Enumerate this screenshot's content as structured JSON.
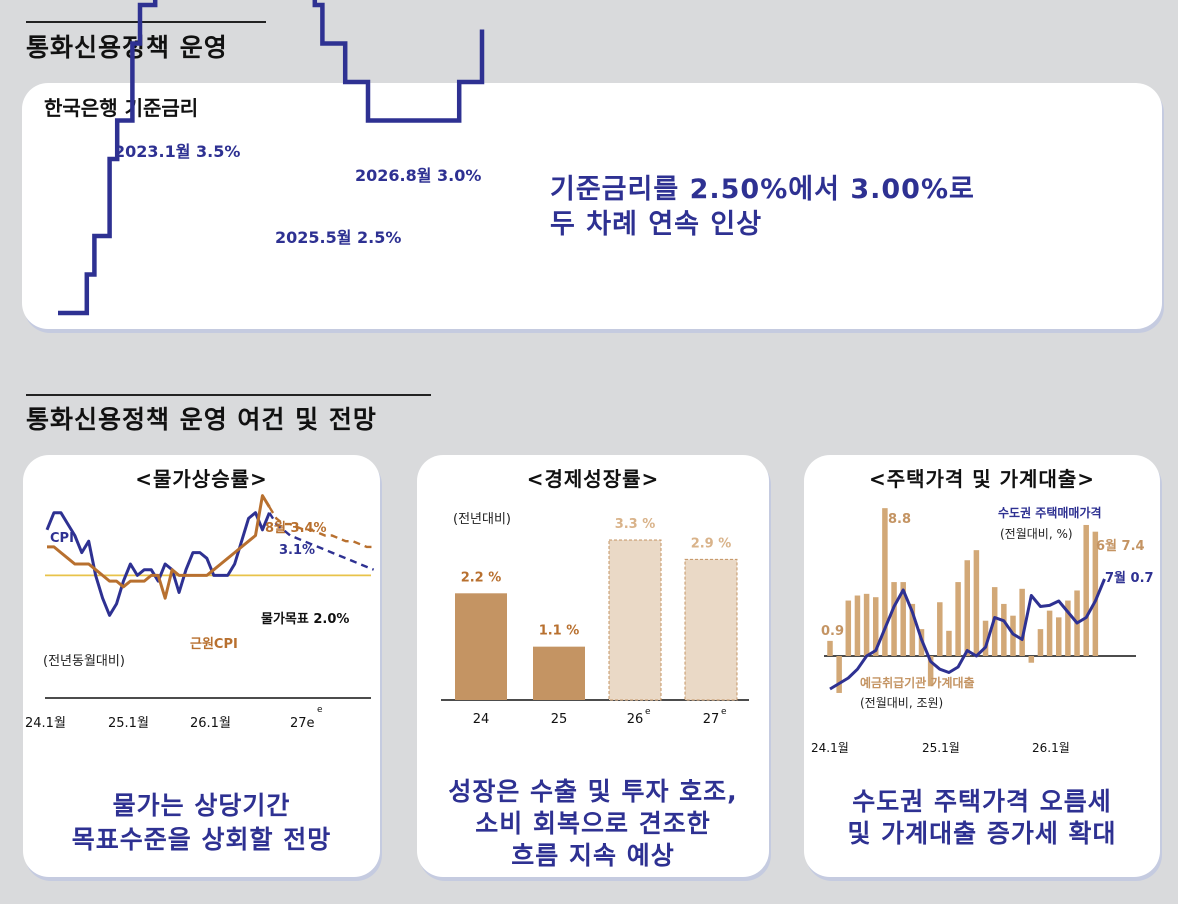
{
  "section1": {
    "title": "통화신용정책 운영"
  },
  "rate_card": {
    "title": "한국은행 기준금리",
    "label_2023": "2023.1월 3.5%",
    "label_2025": "2025.5월 2.5%",
    "label_2026": "2026.8월 3.0%",
    "headline_line1": "기준금리를 2.50%에서 3.00%로",
    "headline_line2": "두 차례 연속 인상"
  },
  "section2": {
    "title": "통화신용정책 운영 여건 및 전망"
  },
  "colors": {
    "navy": "#2e3192",
    "brown": "#b8702f",
    "bar_actual": "#c49463",
    "bar_forecast": "#ead9c6",
    "target_line": "#e8c34a",
    "house_bar": "#d2a877"
  },
  "panels": {
    "inflation": {
      "title": "<물가상승률>",
      "caption_line1": "물가는 상당기간",
      "caption_line2": "목표수준을 상회할 전망"
    },
    "growth": {
      "title": "<경제성장률>",
      "caption_line1": "성장은 수출 및 투자 호조,",
      "caption_line2": "소비 회복으로 견조한",
      "caption_line3": "흐름 지속 예상"
    },
    "housing": {
      "title": "<주택가격 및 가계대출>",
      "caption_line1": "수도권 주택가격 오름세",
      "caption_line2": "및 가계대출 증가세 확대"
    }
  },
  "chart_data": [
    {
      "type": "line",
      "title": "",
      "step": true,
      "x": [
        "2022-01",
        "2022-04",
        "2022-05",
        "2022-07",
        "2022-08",
        "2022-10",
        "2022-11",
        "2023-01",
        "2024-10",
        "2024-11",
        "2025-02",
        "2025-05",
        "2026-05",
        "2026-08"
      ],
      "values": [
        1.25,
        1.5,
        1.75,
        2.25,
        2.5,
        3.0,
        3.25,
        3.5,
        3.25,
        3.0,
        2.75,
        2.5,
        2.75,
        3.0
      ],
      "annotations": [
        "2023.1월 3.5%",
        "2025.5월 2.5%",
        "2026.8월 3.0%"
      ]
    },
    {
      "type": "line",
      "title": "<물가상승률>",
      "unit": "(전년동월대비)",
      "xlabel": "",
      "ylabel": "",
      "ylim": [
        0.5,
        4.5
      ],
      "x_tick_labels": [
        "24.1월",
        "25.1월",
        "26.1월",
        "27e"
      ],
      "x": [
        "2024-01",
        "2024-02",
        "2024-03",
        "2024-04",
        "2024-05",
        "2024-06",
        "2024-07",
        "2024-08",
        "2024-09",
        "2024-10",
        "2024-11",
        "2024-12",
        "2025-01",
        "2025-02",
        "2025-03",
        "2025-04",
        "2025-05",
        "2025-06",
        "2025-07",
        "2025-08",
        "2025-09",
        "2025-10",
        "2025-11",
        "2025-12",
        "2026-01",
        "2026-02",
        "2026-03",
        "2026-04",
        "2026-05",
        "2026-06",
        "2026-07",
        "2026-08",
        "2026-09",
        "2026-10",
        "2026-11",
        "2026-12",
        "2027-01",
        "2027-02",
        "2027-03",
        "2027-04",
        "2027-05",
        "2027-06",
        "2027-07",
        "2027-08",
        "2027-09",
        "2027-10",
        "2027-11",
        "2027-12"
      ],
      "series": [
        {
          "name": "CPI",
          "values": [
            2.8,
            3.1,
            3.1,
            2.9,
            2.7,
            2.4,
            2.6,
            2.0,
            1.6,
            1.3,
            1.5,
            1.9,
            2.2,
            2.0,
            2.1,
            2.1,
            1.9,
            2.2,
            2.1,
            1.7,
            2.1,
            2.4,
            2.4,
            2.3,
            2.0,
            2.0,
            2.0,
            2.2,
            2.6,
            3.0,
            3.1,
            2.8,
            3.1,
            null,
            null,
            null,
            null,
            null,
            null,
            null,
            null,
            null,
            null,
            null,
            null,
            null,
            null,
            null
          ],
          "forecast": [
            null,
            null,
            null,
            null,
            null,
            null,
            null,
            null,
            null,
            null,
            null,
            null,
            null,
            null,
            null,
            null,
            null,
            null,
            null,
            null,
            null,
            null,
            null,
            null,
            null,
            null,
            null,
            null,
            null,
            null,
            null,
            null,
            3.1,
            2.9,
            2.8,
            2.7,
            2.65,
            2.6,
            2.55,
            2.5,
            2.45,
            2.4,
            2.35,
            2.3,
            2.25,
            2.2,
            2.15,
            2.1
          ]
        },
        {
          "name": "근원CPI",
          "values": [
            2.5,
            2.5,
            2.4,
            2.3,
            2.2,
            2.2,
            2.2,
            2.1,
            2.0,
            1.9,
            1.9,
            1.8,
            1.9,
            1.9,
            1.9,
            2.0,
            2.0,
            1.6,
            2.1,
            2.0,
            2.0,
            2.0,
            2.0,
            2.0,
            2.1,
            2.2,
            2.3,
            2.4,
            2.5,
            2.6,
            2.7,
            3.4,
            3.2,
            null,
            null,
            null,
            null,
            null,
            null,
            null,
            null,
            null,
            null,
            null,
            null,
            null,
            null,
            null
          ],
          "forecast": [
            null,
            null,
            null,
            null,
            null,
            null,
            null,
            null,
            null,
            null,
            null,
            null,
            null,
            null,
            null,
            null,
            null,
            null,
            null,
            null,
            null,
            null,
            null,
            null,
            null,
            null,
            null,
            null,
            null,
            null,
            null,
            null,
            3.2,
            3.0,
            2.9,
            2.9,
            2.85,
            2.8,
            2.8,
            2.75,
            2.7,
            2.7,
            2.65,
            2.6,
            2.6,
            2.55,
            2.5,
            2.5
          ]
        },
        {
          "name": "물가목표 2.0%",
          "constant": 2.0
        }
      ],
      "annotations": [
        "CPI",
        "3.1%",
        "8월 3.4%",
        "근원CPI",
        "물가목표 2.0%"
      ]
    },
    {
      "type": "bar",
      "title": "<경제성장률>",
      "unit": "(전년대비)",
      "categories": [
        "24",
        "25",
        "26e",
        "27e"
      ],
      "x_tick_labels": [
        "24",
        "25",
        "26",
        "27"
      ],
      "values": [
        2.2,
        1.1,
        3.3,
        2.9
      ],
      "value_labels": [
        "2.2 %",
        "1.1 %",
        "3.3 %",
        "2.9 %"
      ],
      "forecast": [
        false,
        false,
        true,
        true
      ],
      "ylim": [
        0,
        3.8
      ]
    },
    {
      "type": "bar",
      "title": "<주택가격 및 가계대출>",
      "x_tick_labels": [
        "24.1월",
        "25.1월",
        "26.1월"
      ],
      "x": [
        "2024-01",
        "2024-02",
        "2024-03",
        "2024-04",
        "2024-05",
        "2024-06",
        "2024-07",
        "2024-08",
        "2024-09",
        "2024-10",
        "2024-11",
        "2024-12",
        "2025-01",
        "2025-02",
        "2025-03",
        "2025-04",
        "2025-05",
        "2025-06",
        "2025-07",
        "2025-08",
        "2025-09",
        "2025-10",
        "2025-11",
        "2025-12",
        "2026-01",
        "2026-02",
        "2026-03",
        "2026-04",
        "2026-05",
        "2026-06",
        "2026-07"
      ],
      "series": [
        {
          "name": "예금취급기관 가계대출",
          "unit": "(전월대비, 조원)",
          "values": [
            0.9,
            -2.2,
            3.3,
            3.6,
            3.7,
            3.5,
            8.8,
            4.4,
            4.4,
            3.1,
            1.6,
            -1.8,
            3.2,
            1.5,
            4.4,
            5.7,
            6.3,
            2.1,
            4.1,
            3.1,
            2.4,
            4.0,
            -0.4,
            1.6,
            2.7,
            2.3,
            3.3,
            3.9,
            7.8,
            7.4,
            null
          ]
        },
        {
          "name": "수도권 주택매매가격",
          "unit": "(전월대비, %)",
          "values": [
            -0.3,
            -0.25,
            -0.2,
            -0.12,
            0.0,
            0.05,
            0.25,
            0.45,
            0.6,
            0.4,
            0.15,
            -0.05,
            -0.12,
            -0.15,
            -0.1,
            0.05,
            0.0,
            0.08,
            0.35,
            0.32,
            0.2,
            0.15,
            0.55,
            0.45,
            0.46,
            0.5,
            0.4,
            0.3,
            0.35,
            0.5,
            0.7
          ]
        }
      ],
      "ylim_bars": [
        -3,
        10
      ],
      "ylim_line": [
        -0.5,
        1.2
      ],
      "annotations": [
        "8.8",
        "0.9",
        "6월 7.4",
        "7월 0.7"
      ]
    }
  ]
}
